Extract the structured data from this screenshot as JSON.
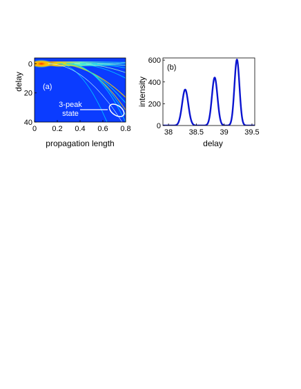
{
  "chart_data": [
    {
      "type": "heatmap",
      "panel_label": "(a)",
      "xlabel": "propagation length",
      "ylabel": "delay",
      "xlim": [
        0,
        0.8
      ],
      "ylim": [
        40,
        -4
      ],
      "x_ticks": [
        0,
        0.2,
        0.4,
        0.6,
        0.8
      ],
      "x_tick_labels": [
        "0",
        "0.2",
        "0.4",
        "0.6",
        "0.8"
      ],
      "y_ticks": [
        0,
        20,
        40
      ],
      "y_tick_labels": [
        "0",
        "20",
        "40"
      ],
      "annotation": {
        "line1": "3-peak",
        "line2": "state"
      },
      "colors": {
        "background": "#0b3cff",
        "hot": "#ff2a00",
        "warm": "#ffd400",
        "cool": "#00e5ff"
      }
    },
    {
      "type": "line",
      "panel_label": "(b)",
      "xlabel": "delay",
      "ylabel": "intensity",
      "xlim": [
        37.9,
        39.55
      ],
      "ylim": [
        0,
        620
      ],
      "x_ticks": [
        38,
        38.5,
        39,
        39.5
      ],
      "x_tick_labels": [
        "38",
        "38.5",
        "39",
        "39.5"
      ],
      "y_ticks": [
        0,
        200,
        400,
        600
      ],
      "y_tick_labels": [
        "0",
        "200",
        "400",
        "600"
      ],
      "grid": false,
      "series": [
        {
          "color": "#0a14d0",
          "peaks": [
            {
              "center": 38.3,
              "height": 330,
              "width": 0.055
            },
            {
              "center": 38.83,
              "height": 440,
              "width": 0.05
            },
            {
              "center": 39.23,
              "height": 605,
              "width": 0.045
            }
          ]
        }
      ]
    }
  ]
}
